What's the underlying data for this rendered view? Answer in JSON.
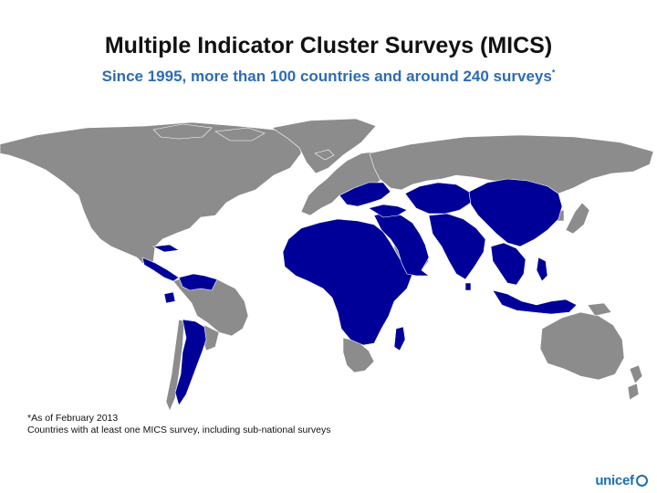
{
  "slide": {
    "title": "Multiple Indicator Cluster Surveys (MICS)",
    "subtitle": "Since 1995, more than 100 countries and around 240 surveys",
    "subtitle_marker": "*",
    "note_date": "*As of February 2013",
    "note_desc": "Countries with at least one MICS survey, including sub-national surveys",
    "logo_text": "unicef"
  },
  "map": {
    "type": "choropleth-world",
    "colors": {
      "mics_country": "#000099",
      "other_country": "#8C8C8C",
      "border": "#FFFFFF",
      "background": "#FFFFFF"
    }
  }
}
